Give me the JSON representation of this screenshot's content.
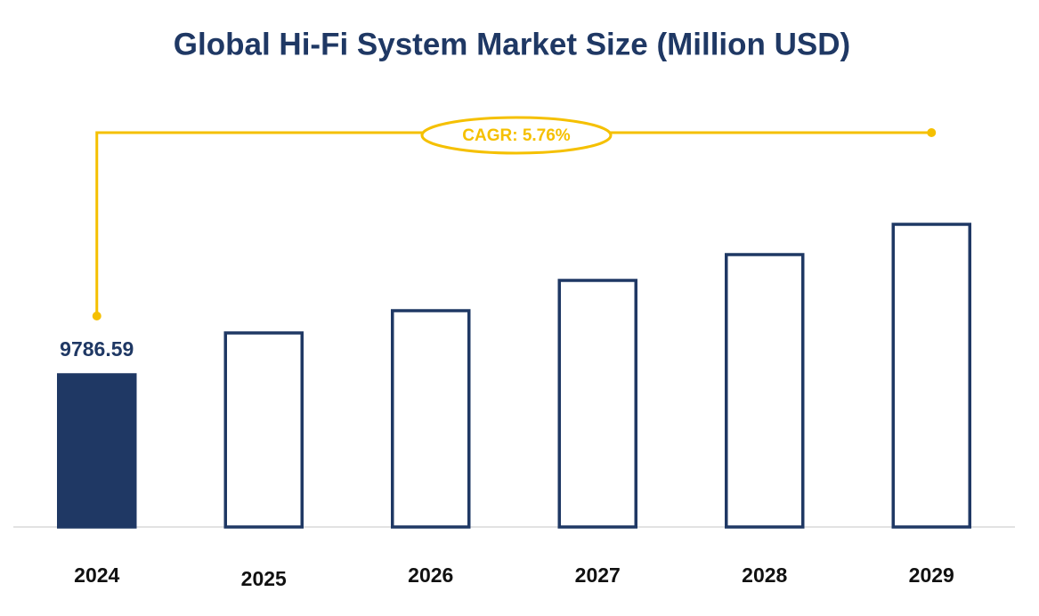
{
  "chart_data": {
    "type": "bar",
    "title": "Global Hi-Fi System Market Size (Million USD)",
    "annotation": "CAGR: 5.76%",
    "categories": [
      "2024",
      "2025",
      "2026",
      "2027",
      "2028",
      "2029"
    ],
    "values": [
      9786.59,
      12476,
      13907,
      15853,
      17513,
      19459
    ],
    "value_labels": [
      "9786.59",
      null,
      null,
      null,
      null,
      null
    ],
    "colors": [
      "#1f3864",
      "#ffffff",
      "#ffffff",
      "#ffffff",
      "#ffffff",
      "#ffffff"
    ],
    "edge_color": "#1f3864",
    "annotation_color": "#f5c000"
  }
}
